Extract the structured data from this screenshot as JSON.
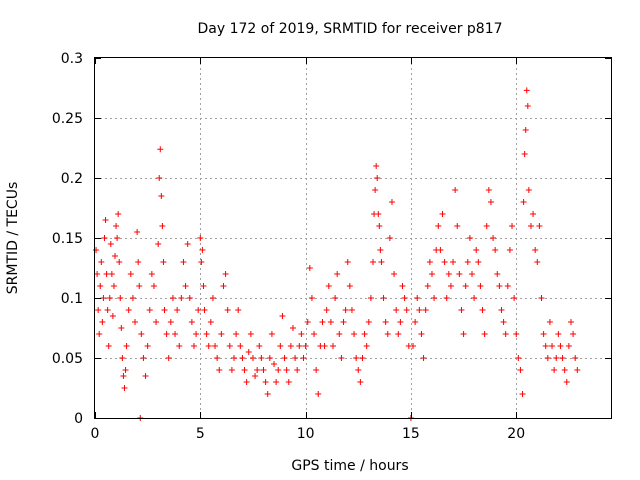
{
  "chart_data": {
    "type": "scatter",
    "title": "Day 172 of 2019, SRMTID for receiver p817",
    "xlabel": "GPS time / hours",
    "ylabel": "SRMTID / TECUs",
    "xlim": [
      0,
      24.5
    ],
    "ylim": [
      0,
      0.3
    ],
    "x_ticks": [
      0,
      5,
      10,
      15,
      20
    ],
    "x_tick_labels": [
      "0",
      "5",
      "10",
      "15",
      "20"
    ],
    "y_ticks": [
      0,
      0.05,
      0.1,
      0.15,
      0.2,
      0.25,
      0.3
    ],
    "y_tick_labels": [
      "0",
      "0.05",
      "0.1",
      "0.15",
      "0.2",
      "0.25",
      "0.3"
    ],
    "grid": true,
    "marker": "+",
    "color": "#ff0000",
    "series": [
      {
        "name": "SRMTID",
        "points": [
          [
            0.05,
            0.14
          ],
          [
            0.1,
            0.12
          ],
          [
            0.15,
            0.09
          ],
          [
            0.2,
            0.07
          ],
          [
            0.25,
            0.11
          ],
          [
            0.3,
            0.13
          ],
          [
            0.35,
            0.08
          ],
          [
            0.4,
            0.1
          ],
          [
            0.45,
            0.15
          ],
          [
            0.5,
            0.165
          ],
          [
            0.55,
            0.12
          ],
          [
            0.6,
            0.09
          ],
          [
            0.65,
            0.06
          ],
          [
            0.7,
            0.1
          ],
          [
            0.75,
            0.145
          ],
          [
            0.8,
            0.12
          ],
          [
            0.85,
            0.085
          ],
          [
            0.9,
            0.11
          ],
          [
            0.95,
            0.135
          ],
          [
            1.0,
            0.16
          ],
          [
            1.05,
            0.15
          ],
          [
            1.1,
            0.17
          ],
          [
            1.15,
            0.13
          ],
          [
            1.2,
            0.1
          ],
          [
            1.25,
            0.075
          ],
          [
            1.3,
            0.05
          ],
          [
            1.35,
            0.035
          ],
          [
            1.4,
            0.025
          ],
          [
            1.45,
            0.04
          ],
          [
            1.5,
            0.06
          ],
          [
            1.6,
            0.09
          ],
          [
            1.7,
            0.12
          ],
          [
            1.8,
            0.1
          ],
          [
            1.9,
            0.08
          ],
          [
            2.0,
            0.155
          ],
          [
            2.05,
            0.13
          ],
          [
            2.1,
            0.11
          ],
          [
            2.15,
            0.0
          ],
          [
            2.2,
            0.07
          ],
          [
            2.3,
            0.05
          ],
          [
            2.4,
            0.035
          ],
          [
            2.5,
            0.06
          ],
          [
            2.6,
            0.09
          ],
          [
            2.7,
            0.12
          ],
          [
            2.8,
            0.11
          ],
          [
            2.9,
            0.08
          ],
          [
            3.0,
            0.145
          ],
          [
            3.05,
            0.2
          ],
          [
            3.1,
            0.224
          ],
          [
            3.15,
            0.185
          ],
          [
            3.2,
            0.16
          ],
          [
            3.25,
            0.13
          ],
          [
            3.3,
            0.09
          ],
          [
            3.4,
            0.07
          ],
          [
            3.5,
            0.05
          ],
          [
            3.6,
            0.08
          ],
          [
            3.7,
            0.1
          ],
          [
            3.8,
            0.07
          ],
          [
            3.9,
            0.09
          ],
          [
            4.0,
            0.06
          ],
          [
            4.1,
            0.1
          ],
          [
            4.2,
            0.13
          ],
          [
            4.3,
            0.11
          ],
          [
            4.4,
            0.145
          ],
          [
            4.5,
            0.1
          ],
          [
            4.6,
            0.08
          ],
          [
            4.7,
            0.06
          ],
          [
            4.8,
            0.07
          ],
          [
            4.9,
            0.09
          ],
          [
            5.0,
            0.15
          ],
          [
            5.05,
            0.13
          ],
          [
            5.1,
            0.14
          ],
          [
            5.15,
            0.11
          ],
          [
            5.2,
            0.09
          ],
          [
            5.3,
            0.07
          ],
          [
            5.4,
            0.06
          ],
          [
            5.5,
            0.08
          ],
          [
            5.6,
            0.1
          ],
          [
            5.7,
            0.06
          ],
          [
            5.8,
            0.05
          ],
          [
            5.9,
            0.04
          ],
          [
            6.0,
            0.07
          ],
          [
            6.1,
            0.11
          ],
          [
            6.2,
            0.12
          ],
          [
            6.3,
            0.09
          ],
          [
            6.4,
            0.06
          ],
          [
            6.5,
            0.04
          ],
          [
            6.6,
            0.05
          ],
          [
            6.7,
            0.07
          ],
          [
            6.8,
            0.09
          ],
          [
            6.9,
            0.06
          ],
          [
            7.0,
            0.05
          ],
          [
            7.1,
            0.04
          ],
          [
            7.2,
            0.03
          ],
          [
            7.3,
            0.055
          ],
          [
            7.4,
            0.07
          ],
          [
            7.5,
            0.05
          ],
          [
            7.6,
            0.035
          ],
          [
            7.7,
            0.04
          ],
          [
            7.8,
            0.06
          ],
          [
            7.9,
            0.05
          ],
          [
            8.0,
            0.04
          ],
          [
            8.1,
            0.03
          ],
          [
            8.2,
            0.02
          ],
          [
            8.3,
            0.05
          ],
          [
            8.4,
            0.07
          ],
          [
            8.5,
            0.045
          ],
          [
            8.6,
            0.03
          ],
          [
            8.7,
            0.04
          ],
          [
            8.8,
            0.06
          ],
          [
            8.9,
            0.085
          ],
          [
            9.0,
            0.05
          ],
          [
            9.1,
            0.04
          ],
          [
            9.2,
            0.03
          ],
          [
            9.3,
            0.06
          ],
          [
            9.4,
            0.075
          ],
          [
            9.5,
            0.05
          ],
          [
            9.6,
            0.04
          ],
          [
            9.7,
            0.06
          ],
          [
            9.8,
            0.07
          ],
          [
            9.9,
            0.05
          ],
          [
            10.0,
            0.06
          ],
          [
            10.1,
            0.08
          ],
          [
            10.2,
            0.125
          ],
          [
            10.3,
            0.1
          ],
          [
            10.4,
            0.07
          ],
          [
            10.5,
            0.04
          ],
          [
            10.6,
            0.02
          ],
          [
            10.7,
            0.06
          ],
          [
            10.8,
            0.08
          ],
          [
            10.9,
            0.06
          ],
          [
            11.0,
            0.09
          ],
          [
            11.1,
            0.11
          ],
          [
            11.2,
            0.08
          ],
          [
            11.3,
            0.06
          ],
          [
            11.4,
            0.1
          ],
          [
            11.5,
            0.12
          ],
          [
            11.6,
            0.07
          ],
          [
            11.7,
            0.05
          ],
          [
            11.8,
            0.08
          ],
          [
            11.9,
            0.09
          ],
          [
            12.0,
            0.13
          ],
          [
            12.1,
            0.11
          ],
          [
            12.2,
            0.09
          ],
          [
            12.3,
            0.07
          ],
          [
            12.4,
            0.05
          ],
          [
            12.5,
            0.04
          ],
          [
            12.6,
            0.03
          ],
          [
            12.7,
            0.05
          ],
          [
            12.8,
            0.07
          ],
          [
            12.9,
            0.06
          ],
          [
            13.0,
            0.08
          ],
          [
            13.1,
            0.1
          ],
          [
            13.2,
            0.13
          ],
          [
            13.25,
            0.17
          ],
          [
            13.3,
            0.19
          ],
          [
            13.35,
            0.21
          ],
          [
            13.4,
            0.2
          ],
          [
            13.45,
            0.17
          ],
          [
            13.5,
            0.16
          ],
          [
            13.55,
            0.14
          ],
          [
            13.6,
            0.13
          ],
          [
            13.7,
            0.1
          ],
          [
            13.8,
            0.08
          ],
          [
            13.9,
            0.07
          ],
          [
            14.0,
            0.15
          ],
          [
            14.1,
            0.18
          ],
          [
            14.2,
            0.12
          ],
          [
            14.3,
            0.09
          ],
          [
            14.4,
            0.07
          ],
          [
            14.5,
            0.08
          ],
          [
            14.6,
            0.11
          ],
          [
            14.7,
            0.1
          ],
          [
            14.8,
            0.09
          ],
          [
            14.9,
            0.06
          ],
          [
            15.0,
            0.0
          ],
          [
            15.1,
            0.06
          ],
          [
            15.2,
            0.08
          ],
          [
            15.3,
            0.1
          ],
          [
            15.4,
            0.09
          ],
          [
            15.5,
            0.07
          ],
          [
            15.6,
            0.05
          ],
          [
            15.7,
            0.09
          ],
          [
            15.8,
            0.11
          ],
          [
            15.9,
            0.13
          ],
          [
            16.0,
            0.12
          ],
          [
            16.1,
            0.1
          ],
          [
            16.2,
            0.14
          ],
          [
            16.3,
            0.16
          ],
          [
            16.4,
            0.14
          ],
          [
            16.5,
            0.17
          ],
          [
            16.6,
            0.13
          ],
          [
            16.7,
            0.1
          ],
          [
            16.8,
            0.12
          ],
          [
            16.9,
            0.11
          ],
          [
            17.0,
            0.13
          ],
          [
            17.1,
            0.19
          ],
          [
            17.2,
            0.16
          ],
          [
            17.3,
            0.12
          ],
          [
            17.4,
            0.09
          ],
          [
            17.5,
            0.07
          ],
          [
            17.6,
            0.11
          ],
          [
            17.7,
            0.13
          ],
          [
            17.8,
            0.15
          ],
          [
            17.9,
            0.12
          ],
          [
            18.0,
            0.1
          ],
          [
            18.1,
            0.14
          ],
          [
            18.2,
            0.13
          ],
          [
            18.3,
            0.11
          ],
          [
            18.4,
            0.09
          ],
          [
            18.5,
            0.07
          ],
          [
            18.6,
            0.16
          ],
          [
            18.7,
            0.19
          ],
          [
            18.8,
            0.18
          ],
          [
            18.9,
            0.15
          ],
          [
            19.0,
            0.14
          ],
          [
            19.1,
            0.12
          ],
          [
            19.2,
            0.11
          ],
          [
            19.3,
            0.09
          ],
          [
            19.4,
            0.08
          ],
          [
            19.5,
            0.07
          ],
          [
            19.6,
            0.11
          ],
          [
            19.7,
            0.14
          ],
          [
            19.8,
            0.16
          ],
          [
            19.9,
            0.1
          ],
          [
            20.0,
            0.07
          ],
          [
            20.1,
            0.05
          ],
          [
            20.2,
            0.04
          ],
          [
            20.3,
            0.02
          ],
          [
            20.35,
            0.18
          ],
          [
            20.4,
            0.22
          ],
          [
            20.45,
            0.24
          ],
          [
            20.5,
            0.273
          ],
          [
            20.55,
            0.26
          ],
          [
            20.6,
            0.19
          ],
          [
            20.7,
            0.16
          ],
          [
            20.8,
            0.17
          ],
          [
            20.9,
            0.14
          ],
          [
            21.0,
            0.13
          ],
          [
            21.1,
            0.16
          ],
          [
            21.2,
            0.1
          ],
          [
            21.3,
            0.07
          ],
          [
            21.4,
            0.06
          ],
          [
            21.5,
            0.05
          ],
          [
            21.6,
            0.08
          ],
          [
            21.7,
            0.06
          ],
          [
            21.8,
            0.04
          ],
          [
            21.9,
            0.05
          ],
          [
            22.0,
            0.07
          ],
          [
            22.1,
            0.06
          ],
          [
            22.2,
            0.05
          ],
          [
            22.3,
            0.04
          ],
          [
            22.4,
            0.03
          ],
          [
            22.5,
            0.06
          ],
          [
            22.6,
            0.08
          ],
          [
            22.7,
            0.07
          ],
          [
            22.8,
            0.05
          ],
          [
            22.9,
            0.04
          ]
        ]
      }
    ]
  }
}
